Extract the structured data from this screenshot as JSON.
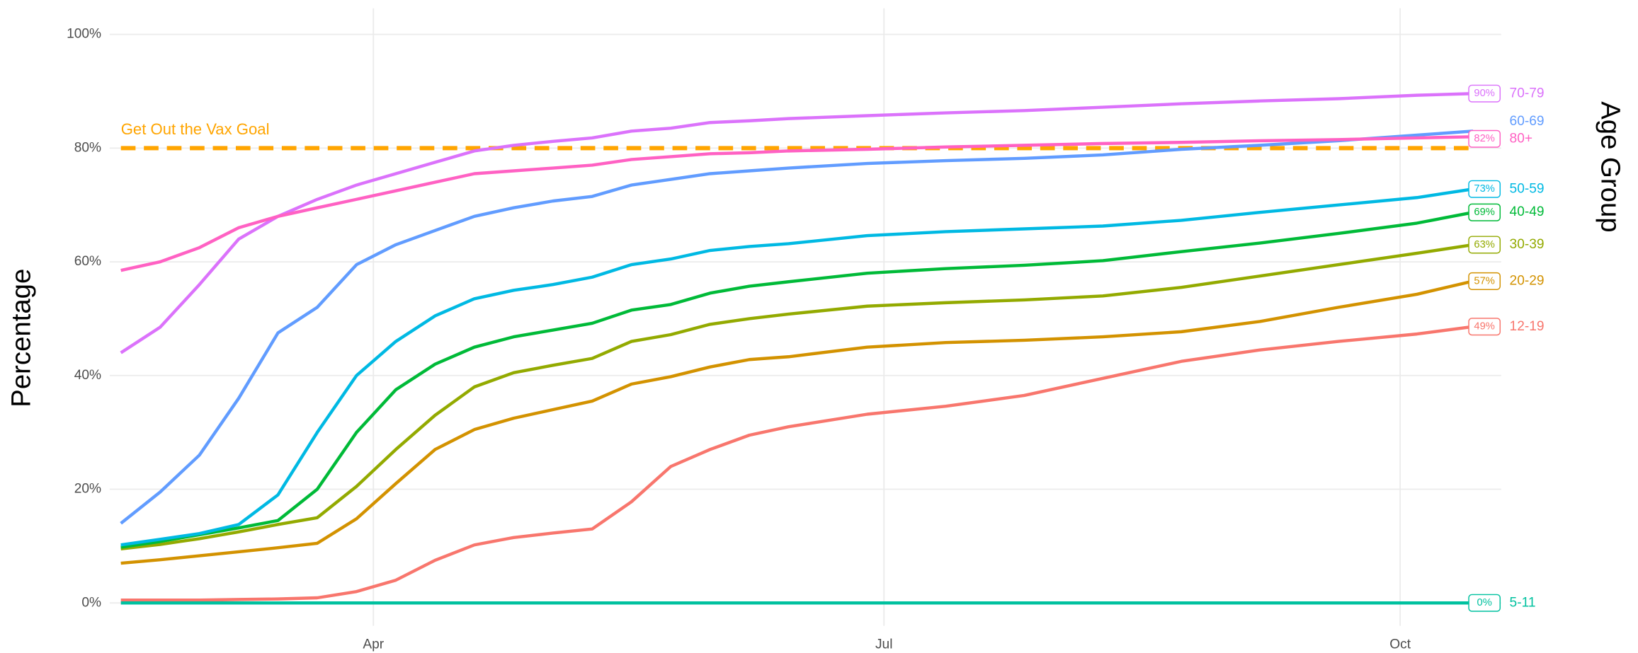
{
  "chart_data": {
    "type": "line",
    "y_label": "Percentage",
    "legend_title": "Age Group",
    "x": [
      46,
      53,
      60,
      67,
      74,
      81,
      88,
      95,
      102,
      109,
      116,
      123,
      130,
      137,
      144,
      151,
      158,
      165,
      179,
      193,
      207,
      221,
      235,
      249,
      263,
      277,
      287
    ],
    "xlim": [
      44,
      292
    ],
    "xticks": [
      {
        "value": 91,
        "label": "Apr"
      },
      {
        "value": 182,
        "label": "Jul"
      },
      {
        "value": 274,
        "label": "Oct"
      }
    ],
    "ylim": [
      0,
      100
    ],
    "yticks": [
      {
        "value": 0,
        "label": "0%"
      },
      {
        "value": 20,
        "label": "20%"
      },
      {
        "value": 40,
        "label": "40%"
      },
      {
        "value": 60,
        "label": "60%"
      },
      {
        "value": 80,
        "label": "80%"
      },
      {
        "value": 100,
        "label": "100%"
      }
    ],
    "grid": true,
    "goal": {
      "value": 80,
      "label": "Get Out the Vax Goal",
      "color": "#FFA500"
    },
    "series": [
      {
        "name": "12-19",
        "color": "#F8766D",
        "values": [
          0.5,
          0.5,
          0.5,
          0.6,
          0.7,
          0.9,
          2,
          4,
          7.5,
          10.2,
          11.5,
          12.3,
          13,
          17.8,
          24,
          27,
          29.5,
          31,
          33.2,
          34.6,
          36.5,
          39.5,
          42.5,
          44.5,
          46,
          47.3,
          48.6
        ],
        "value_labels": [
          null,
          null,
          null,
          null,
          null,
          null,
          null,
          null,
          null,
          null,
          null,
          null,
          null,
          null,
          null,
          null,
          null,
          null,
          null,
          null,
          null,
          null,
          null,
          null,
          null,
          null,
          "49%"
        ]
      },
      {
        "name": "20-29",
        "color": "#D39200",
        "values": [
          7,
          7.6,
          8.3,
          9,
          9.7,
          10.5,
          14.8,
          21,
          27,
          30.5,
          32.5,
          34,
          35.5,
          38.5,
          39.8,
          41.5,
          42.8,
          43.3,
          45,
          45.8,
          46.2,
          46.8,
          47.7,
          49.5,
          52,
          54.3,
          56.6
        ],
        "value_labels": [
          null,
          null,
          null,
          null,
          null,
          null,
          null,
          null,
          null,
          null,
          null,
          null,
          null,
          null,
          null,
          null,
          null,
          null,
          null,
          null,
          null,
          null,
          null,
          null,
          null,
          null,
          "57%"
        ]
      },
      {
        "name": "30-39",
        "color": "#93AA00",
        "values": [
          9.5,
          10.3,
          11.3,
          12.5,
          13.8,
          15,
          20.5,
          27,
          33,
          38,
          40.5,
          41.8,
          43,
          46,
          47.2,
          49,
          50,
          50.8,
          52.2,
          52.8,
          53.3,
          54,
          55.5,
          57.5,
          59.5,
          61.5,
          63
        ],
        "value_labels": [
          null,
          null,
          null,
          null,
          null,
          null,
          null,
          null,
          null,
          null,
          null,
          null,
          null,
          null,
          null,
          null,
          null,
          null,
          null,
          null,
          null,
          null,
          null,
          null,
          null,
          null,
          "63%"
        ]
      },
      {
        "name": "40-49",
        "color": "#00BA38",
        "values": [
          9.8,
          10.8,
          12,
          13.2,
          14.5,
          20,
          30,
          37.5,
          42,
          45,
          46.8,
          48,
          49.2,
          51.5,
          52.5,
          54.5,
          55.7,
          56.5,
          58,
          58.8,
          59.4,
          60.2,
          61.8,
          63.3,
          65,
          66.8,
          68.7
        ],
        "value_labels": [
          null,
          null,
          null,
          null,
          null,
          null,
          null,
          null,
          null,
          null,
          null,
          null,
          null,
          null,
          null,
          null,
          null,
          null,
          null,
          null,
          null,
          null,
          null,
          null,
          null,
          null,
          "69%"
        ]
      },
      {
        "name": "5-11",
        "color": "#00C19F",
        "values": [
          0,
          0,
          0,
          0,
          0,
          0,
          0,
          0,
          0,
          0,
          0,
          0,
          0,
          0,
          0,
          0,
          0,
          0,
          0,
          0,
          0,
          0,
          0,
          0,
          0,
          0,
          0
        ],
        "value_labels": [
          null,
          null,
          null,
          null,
          null,
          null,
          null,
          null,
          null,
          null,
          null,
          null,
          null,
          null,
          null,
          null,
          null,
          null,
          null,
          null,
          null,
          null,
          null,
          null,
          null,
          null,
          "0%"
        ]
      },
      {
        "name": "50-59",
        "color": "#00B9E3",
        "values": [
          10.2,
          11.2,
          12.2,
          13.8,
          19,
          30,
          40,
          46,
          50.5,
          53.5,
          55,
          56,
          57.3,
          59.5,
          60.5,
          62,
          62.7,
          63.2,
          64.6,
          65.3,
          65.8,
          66.3,
          67.3,
          68.7,
          70,
          71.3,
          72.8
        ],
        "value_labels": [
          null,
          null,
          null,
          null,
          null,
          null,
          null,
          null,
          null,
          null,
          null,
          null,
          null,
          null,
          null,
          null,
          null,
          null,
          null,
          null,
          null,
          null,
          null,
          null,
          null,
          null,
          "73%"
        ]
      },
      {
        "name": "60-69",
        "color": "#619CFF",
        "values": [
          14,
          19.5,
          26,
          36,
          47.5,
          52,
          59.5,
          63,
          65.5,
          68,
          69.5,
          70.7,
          71.5,
          73.5,
          74.5,
          75.5,
          76,
          76.5,
          77.3,
          77.8,
          78.2,
          78.8,
          79.8,
          80.5,
          81.3,
          82.3,
          83
        ]
      },
      {
        "name": "70-79",
        "color": "#DB72FB",
        "values": [
          44,
          48.5,
          56,
          64,
          68,
          71,
          73.5,
          75.5,
          77.5,
          79.5,
          80.5,
          81.2,
          81.8,
          83,
          83.5,
          84.5,
          84.8,
          85.2,
          85.7,
          86.2,
          86.6,
          87.2,
          87.8,
          88.3,
          88.7,
          89.3,
          89.6
        ],
        "value_labels": [
          null,
          null,
          null,
          null,
          null,
          null,
          null,
          null,
          null,
          null,
          null,
          null,
          null,
          null,
          null,
          null,
          null,
          null,
          null,
          null,
          null,
          null,
          null,
          null,
          null,
          null,
          "90%"
        ]
      },
      {
        "name": "80+",
        "color": "#FF61C3",
        "values": [
          58.5,
          60,
          62.5,
          66,
          68,
          69.5,
          71,
          72.5,
          74,
          75.5,
          76,
          76.5,
          77,
          78,
          78.5,
          79,
          79.2,
          79.5,
          79.8,
          80.2,
          80.5,
          80.8,
          81,
          81.3,
          81.5,
          81.8,
          82
        ],
        "value_labels": [
          null,
          null,
          null,
          null,
          null,
          null,
          null,
          null,
          null,
          null,
          null,
          null,
          null,
          null,
          null,
          null,
          null,
          null,
          null,
          null,
          null,
          null,
          null,
          null,
          null,
          null,
          "82%"
        ]
      }
    ]
  }
}
